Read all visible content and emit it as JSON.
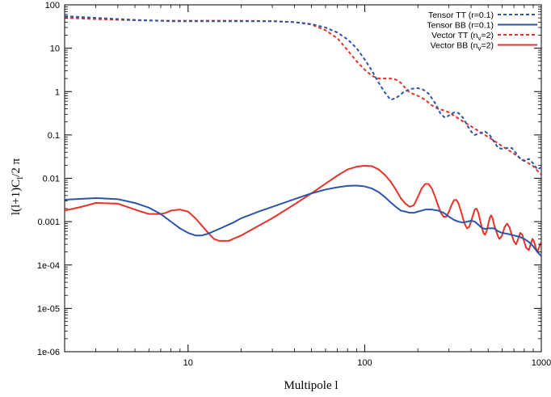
{
  "chart_data": {
    "type": "line",
    "title": "",
    "xlabel": "Multipole l",
    "ylabel": "l(l+1)C",
    "ylabel_sub": "l",
    "ylabel_tail": "/2 π",
    "xscale": "log",
    "yscale": "log",
    "xlim": [
      2,
      1000
    ],
    "ylim": [
      1e-06,
      100
    ],
    "grid": false,
    "legend_position": "top-right",
    "x_ticks": [
      {
        "value": 10,
        "label": "10"
      },
      {
        "value": 100,
        "label": "100"
      },
      {
        "value": 1000,
        "label": "1000"
      }
    ],
    "y_ticks": [
      {
        "value": 1e-06,
        "label": "1e-06"
      },
      {
        "value": 1e-05,
        "label": "1e-05"
      },
      {
        "value": 0.0001,
        "label": "1e-04"
      },
      {
        "value": 0.001,
        "label": "0.001"
      },
      {
        "value": 0.01,
        "label": "0.01"
      },
      {
        "value": 0.1,
        "label": "0.1"
      },
      {
        "value": 1,
        "label": "1"
      },
      {
        "value": 10,
        "label": "10"
      },
      {
        "value": 100,
        "label": "100"
      }
    ],
    "series": [
      {
        "name": "Tensor TT (r=0.1)",
        "legend_parts": [
          {
            "t": "Tensor TT (r=0.1)"
          }
        ],
        "color": "#2a55a8",
        "dash": true,
        "points": [
          [
            2,
            55
          ],
          [
            3,
            50
          ],
          [
            5,
            45
          ],
          [
            8,
            42
          ],
          [
            10,
            42
          ],
          [
            15,
            42
          ],
          [
            20,
            42
          ],
          [
            30,
            42
          ],
          [
            40,
            40
          ],
          [
            50,
            36
          ],
          [
            60,
            30
          ],
          [
            70,
            23
          ],
          [
            80,
            16
          ],
          [
            90,
            10
          ],
          [
            100,
            5.5
          ],
          [
            110,
            3
          ],
          [
            120,
            1.6
          ],
          [
            130,
            0.95
          ],
          [
            140,
            0.65
          ],
          [
            150,
            0.7
          ],
          [
            165,
            0.95
          ],
          [
            180,
            1.15
          ],
          [
            200,
            1.2
          ],
          [
            215,
            1.1
          ],
          [
            230,
            0.9
          ],
          [
            250,
            0.55
          ],
          [
            270,
            0.3
          ],
          [
            285,
            0.25
          ],
          [
            300,
            0.28
          ],
          [
            320,
            0.33
          ],
          [
            340,
            0.32
          ],
          [
            360,
            0.25
          ],
          [
            380,
            0.17
          ],
          [
            400,
            0.12
          ],
          [
            420,
            0.1
          ],
          [
            450,
            0.11
          ],
          [
            480,
            0.12
          ],
          [
            510,
            0.1
          ],
          [
            540,
            0.07
          ],
          [
            570,
            0.05
          ],
          [
            600,
            0.048
          ],
          [
            640,
            0.05
          ],
          [
            680,
            0.05
          ],
          [
            720,
            0.038
          ],
          [
            760,
            0.028
          ],
          [
            800,
            0.025
          ],
          [
            850,
            0.028
          ],
          [
            900,
            0.022
          ],
          [
            950,
            0.016
          ],
          [
            1000,
            0.018
          ]
        ]
      },
      {
        "name": "Tensor BB (r=0.1)",
        "legend_parts": [
          {
            "t": "Tensor BB (r=0.1)"
          }
        ],
        "color": "#2a55a8",
        "dash": false,
        "points": [
          [
            2,
            0.0032
          ],
          [
            3,
            0.0035
          ],
          [
            4,
            0.0033
          ],
          [
            5,
            0.0027
          ],
          [
            6,
            0.0021
          ],
          [
            7,
            0.0015
          ],
          [
            8,
            0.001
          ],
          [
            9,
            0.0007
          ],
          [
            10,
            0.00055
          ],
          [
            11,
            0.00048
          ],
          [
            12,
            0.00048
          ],
          [
            13,
            0.00053
          ],
          [
            15,
            0.00068
          ],
          [
            18,
            0.00095
          ],
          [
            20,
            0.0012
          ],
          [
            25,
            0.0017
          ],
          [
            30,
            0.0022
          ],
          [
            40,
            0.0033
          ],
          [
            50,
            0.0045
          ],
          [
            60,
            0.0055
          ],
          [
            70,
            0.0062
          ],
          [
            80,
            0.0067
          ],
          [
            90,
            0.0068
          ],
          [
            100,
            0.0065
          ],
          [
            110,
            0.0058
          ],
          [
            120,
            0.0048
          ],
          [
            130,
            0.0037
          ],
          [
            140,
            0.0028
          ],
          [
            150,
            0.0022
          ],
          [
            160,
            0.0018
          ],
          [
            170,
            0.0017
          ],
          [
            180,
            0.0016
          ],
          [
            190,
            0.0016
          ],
          [
            200,
            0.0017
          ],
          [
            220,
            0.0019
          ],
          [
            240,
            0.0019
          ],
          [
            260,
            0.0018
          ],
          [
            280,
            0.0016
          ],
          [
            300,
            0.0013
          ],
          [
            320,
            0.0011
          ],
          [
            340,
            0.001
          ],
          [
            360,
            0.00095
          ],
          [
            380,
            0.001
          ],
          [
            400,
            0.00105
          ],
          [
            420,
            0.001
          ],
          [
            440,
            0.00085
          ],
          [
            460,
            0.00072
          ],
          [
            480,
            0.00068
          ],
          [
            500,
            0.0007
          ],
          [
            540,
            0.0007
          ],
          [
            570,
            0.0006
          ],
          [
            600,
            0.00055
          ],
          [
            650,
            0.00052
          ],
          [
            700,
            0.00048
          ],
          [
            750,
            0.00045
          ],
          [
            800,
            0.0004
          ],
          [
            850,
            0.00034
          ],
          [
            900,
            0.00027
          ],
          [
            950,
            0.0002
          ],
          [
            1000,
            0.00016
          ]
        ]
      },
      {
        "name": "Vector TT (nv=2)",
        "legend_parts": [
          {
            "t": "Vector TT (n"
          },
          {
            "t": "v",
            "sub": true
          },
          {
            "t": "=2)"
          }
        ],
        "color": "#e53329",
        "dash": true,
        "points": [
          [
            2,
            50
          ],
          [
            3,
            47
          ],
          [
            5,
            44
          ],
          [
            8,
            43
          ],
          [
            10,
            43
          ],
          [
            15,
            43
          ],
          [
            20,
            43
          ],
          [
            30,
            42
          ],
          [
            40,
            40
          ],
          [
            50,
            35
          ],
          [
            60,
            26
          ],
          [
            70,
            17
          ],
          [
            80,
            9
          ],
          [
            90,
            5
          ],
          [
            100,
            3.2
          ],
          [
            110,
            2.3
          ],
          [
            120,
            2.0
          ],
          [
            130,
            2.0
          ],
          [
            140,
            2.0
          ],
          [
            150,
            1.9
          ],
          [
            160,
            1.6
          ],
          [
            170,
            1.2
          ],
          [
            180,
            0.95
          ],
          [
            200,
            0.8
          ],
          [
            220,
            0.65
          ],
          [
            240,
            0.48
          ],
          [
            260,
            0.4
          ],
          [
            280,
            0.37
          ],
          [
            300,
            0.33
          ],
          [
            320,
            0.28
          ],
          [
            350,
            0.22
          ],
          [
            380,
            0.18
          ],
          [
            420,
            0.14
          ],
          [
            460,
            0.11
          ],
          [
            500,
            0.09
          ],
          [
            550,
            0.07
          ],
          [
            600,
            0.055
          ],
          [
            650,
            0.045
          ],
          [
            700,
            0.037
          ],
          [
            750,
            0.03
          ],
          [
            800,
            0.026
          ],
          [
            850,
            0.022
          ],
          [
            900,
            0.019
          ],
          [
            950,
            0.015
          ],
          [
            1000,
            0.012
          ]
        ]
      },
      {
        "name": "Vector BB (nv=2)",
        "legend_parts": [
          {
            "t": "Vector BB (n"
          },
          {
            "t": "v",
            "sub": true
          },
          {
            "t": "=2)"
          }
        ],
        "color": "#e53329",
        "dash": false,
        "points": [
          [
            2,
            0.0018
          ],
          [
            2.5,
            0.0022
          ],
          [
            3,
            0.0027
          ],
          [
            4,
            0.0026
          ],
          [
            5,
            0.0019
          ],
          [
            6,
            0.0015
          ],
          [
            7,
            0.0015
          ],
          [
            7.5,
            0.0016
          ],
          [
            8,
            0.0018
          ],
          [
            9,
            0.0019
          ],
          [
            10,
            0.0017
          ],
          [
            11,
            0.0012
          ],
          [
            12,
            0.0008
          ],
          [
            13,
            0.00055
          ],
          [
            14,
            0.0004
          ],
          [
            15,
            0.00036
          ],
          [
            17,
            0.00036
          ],
          [
            18,
            0.0004
          ],
          [
            20,
            0.00048
          ],
          [
            25,
            0.0008
          ],
          [
            30,
            0.0012
          ],
          [
            40,
            0.0025
          ],
          [
            50,
            0.0045
          ],
          [
            60,
            0.0075
          ],
          [
            70,
            0.0115
          ],
          [
            80,
            0.016
          ],
          [
            90,
            0.0185
          ],
          [
            100,
            0.0195
          ],
          [
            110,
            0.019
          ],
          [
            120,
            0.016
          ],
          [
            130,
            0.012
          ],
          [
            140,
            0.0085
          ],
          [
            150,
            0.0055
          ],
          [
            160,
            0.0035
          ],
          [
            170,
            0.0026
          ],
          [
            180,
            0.0022
          ],
          [
            190,
            0.0024
          ],
          [
            200,
            0.0037
          ],
          [
            210,
            0.0058
          ],
          [
            220,
            0.0074
          ],
          [
            230,
            0.0074
          ],
          [
            240,
            0.0058
          ],
          [
            250,
            0.0038
          ],
          [
            260,
            0.0024
          ],
          [
            270,
            0.0016
          ],
          [
            280,
            0.0013
          ],
          [
            290,
            0.0013
          ],
          [
            300,
            0.0017
          ],
          [
            310,
            0.0024
          ],
          [
            320,
            0.0031
          ],
          [
            330,
            0.0032
          ],
          [
            340,
            0.0026
          ],
          [
            350,
            0.0018
          ],
          [
            360,
            0.0012
          ],
          [
            370,
            0.00085
          ],
          [
            380,
            0.0007
          ],
          [
            390,
            0.00075
          ],
          [
            400,
            0.001
          ],
          [
            410,
            0.0014
          ],
          [
            420,
            0.0019
          ],
          [
            430,
            0.002
          ],
          [
            440,
            0.0016
          ],
          [
            450,
            0.0011
          ],
          [
            460,
            0.00075
          ],
          [
            470,
            0.00055
          ],
          [
            480,
            0.0005
          ],
          [
            490,
            0.0006
          ],
          [
            500,
            0.00085
          ],
          [
            510,
            0.0012
          ],
          [
            520,
            0.0014
          ],
          [
            530,
            0.0012
          ],
          [
            540,
            0.00085
          ],
          [
            560,
            0.00055
          ],
          [
            570,
            0.00045
          ],
          [
            580,
            0.0004
          ],
          [
            600,
            0.00048
          ],
          [
            620,
            0.00075
          ],
          [
            640,
            0.0009
          ],
          [
            660,
            0.00075
          ],
          [
            680,
            0.0005
          ],
          [
            700,
            0.00035
          ],
          [
            720,
            0.0003
          ],
          [
            740,
            0.0004
          ],
          [
            760,
            0.00055
          ],
          [
            780,
            0.0005
          ],
          [
            800,
            0.00035
          ],
          [
            820,
            0.00025
          ],
          [
            850,
            0.00022
          ],
          [
            870,
            0.0003
          ],
          [
            890,
            0.0004
          ],
          [
            910,
            0.00035
          ],
          [
            930,
            0.00025
          ],
          [
            950,
            0.0002
          ],
          [
            970,
            0.00025
          ],
          [
            990,
            0.00032
          ],
          [
            1000,
            0.0003
          ]
        ]
      }
    ]
  }
}
